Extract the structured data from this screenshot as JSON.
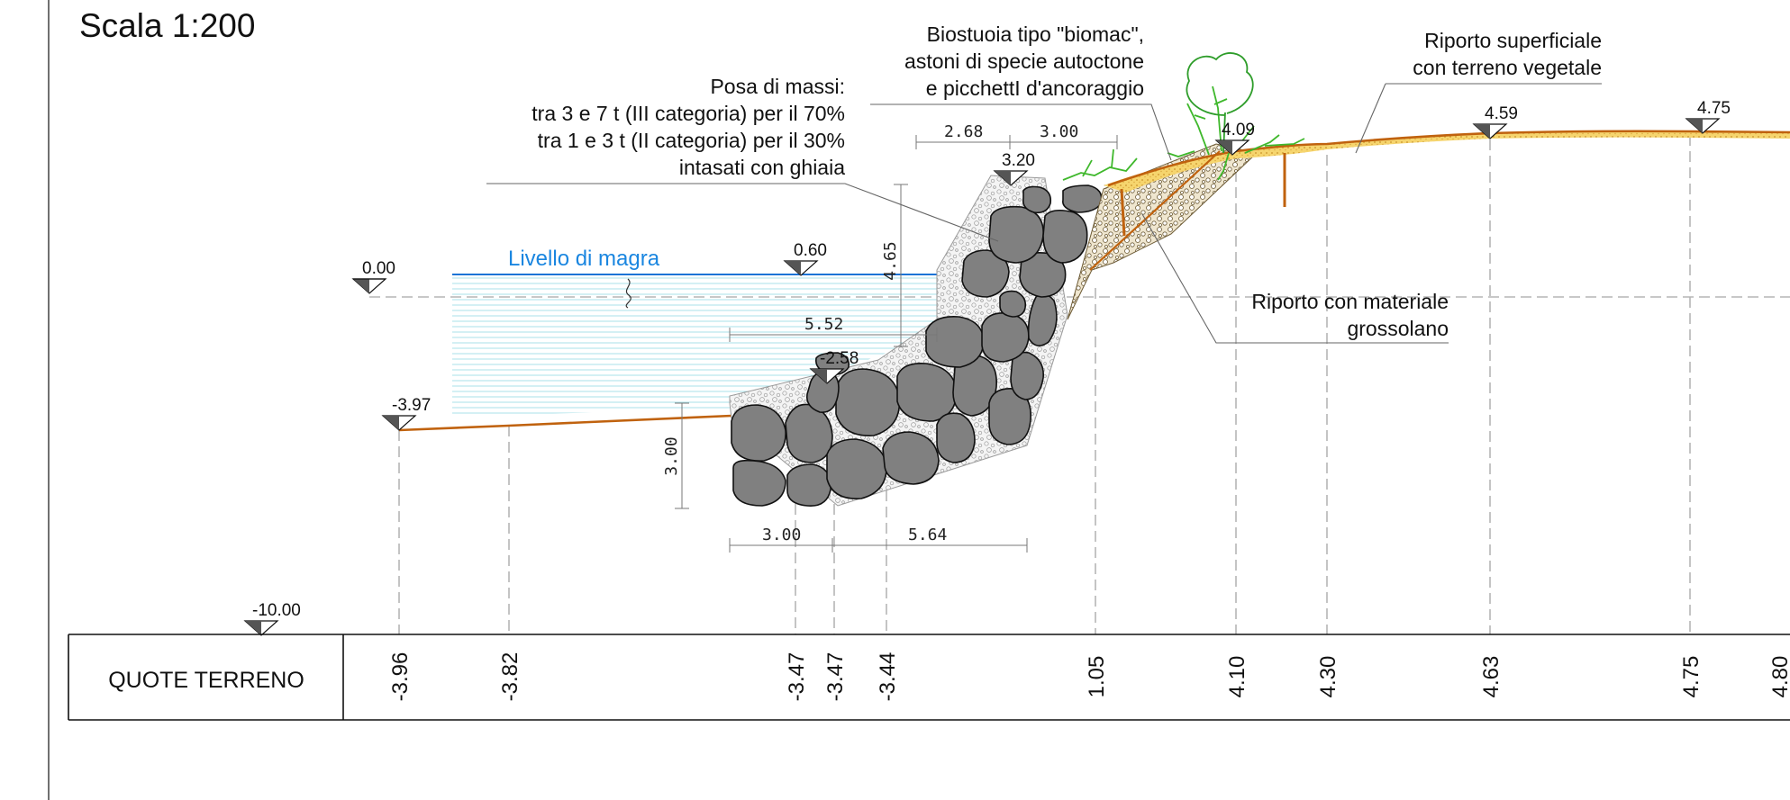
{
  "scale_label": "Scala 1:200",
  "water_label": "Livello di magra",
  "annotations": {
    "massi": [
      "Posa di massi:",
      "tra 3 e 7 t (III categoria) per il 70%",
      "tra 1 e 3 t (II categoria) per il 30%",
      "intasati con ghiaia"
    ],
    "biostuoia": [
      "Biostuoia tipo \"biomac\",",
      "astoni di specie autoctone",
      "e picchettI d'ancoraggio"
    ],
    "riporto_superficiale": [
      "Riporto superficiale",
      "con terreno vegetale"
    ],
    "riporto_grossolano": [
      "Riporto con materiale",
      "grossolano"
    ]
  },
  "levels": [
    {
      "label": "0.00"
    },
    {
      "label": "-3.97"
    },
    {
      "label": "0.60"
    },
    {
      "label": "-2.58"
    },
    {
      "label": "3.20"
    },
    {
      "label": "4.09"
    },
    {
      "label": "4.59"
    },
    {
      "label": "4.75"
    },
    {
      "label": "-10.00"
    }
  ],
  "dimensions": {
    "d268": "2.68",
    "d300_top": "3.00",
    "d465": "4.65",
    "d552": "5.52",
    "d300_left": "3.00",
    "d300_bottom": "3.00",
    "d564": "5.64"
  },
  "table": {
    "header": "QUOTE TERRENO",
    "values": [
      "-3.96",
      "-3.82",
      "-3.47",
      "-3.47",
      "-3.44",
      "1.05",
      "4.10",
      "4.30",
      "4.63",
      "4.75",
      "4.80"
    ]
  },
  "colors": {
    "water_line": "#1a73d6",
    "water_label": "#1a86e0",
    "ground_line": "#c0620e",
    "rock_fill": "#808080",
    "vegetation": "#3fb82c",
    "topsoil": "#f2c84b"
  }
}
